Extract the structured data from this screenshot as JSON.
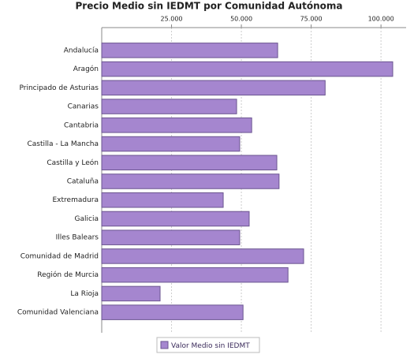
{
  "chart_data": {
    "type": "bar",
    "orientation": "horizontal",
    "title": "Precio Medio sin IEDMT por Comunidad Autónoma",
    "categories": [
      "Andalucía",
      "Aragón",
      "Principado de Asturias",
      "Canarias",
      "Cantabria",
      "Castilla - La Mancha",
      "Castilla y León",
      "Cataluña",
      "Extremadura",
      "Galicia",
      "Illes Balears",
      "Comunidad de Madrid",
      "Región de Murcia",
      "La Rioja",
      "Comunidad Valenciana"
    ],
    "series": [
      {
        "name": "Valor Medio sin IEDMT",
        "color": "#a586cf",
        "values": [
          63000,
          104200,
          80000,
          48300,
          53700,
          49400,
          62700,
          63500,
          43500,
          52800,
          49400,
          72300,
          66700,
          20900,
          50600
        ]
      }
    ],
    "xlim": [
      0,
      109000
    ],
    "xticks": [
      {
        "value": 25000,
        "label": "25.000"
      },
      {
        "value": 50000,
        "label": "50.000"
      },
      {
        "value": 75000,
        "label": "75.000"
      },
      {
        "value": 100000,
        "label": "100.000"
      }
    ],
    "grid": true,
    "legend": "bottom"
  }
}
